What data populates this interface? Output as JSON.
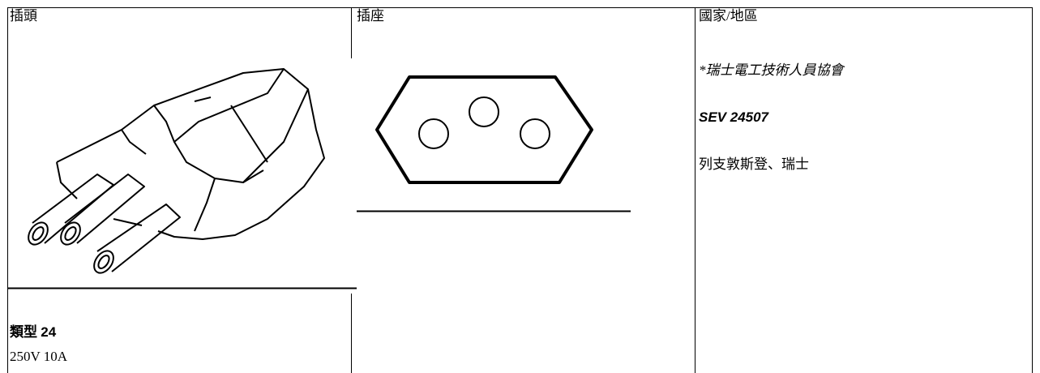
{
  "headers": [
    "插頭",
    "插座",
    "國家/地區"
  ],
  "plug": {
    "type_label": "類型",
    "type_number": "24",
    "rating": "250V  10A"
  },
  "country": {
    "authority": "*瑞士電工技術人員協會",
    "standard": "SEV 24507",
    "countries": "列支敦斯登、瑞士"
  }
}
